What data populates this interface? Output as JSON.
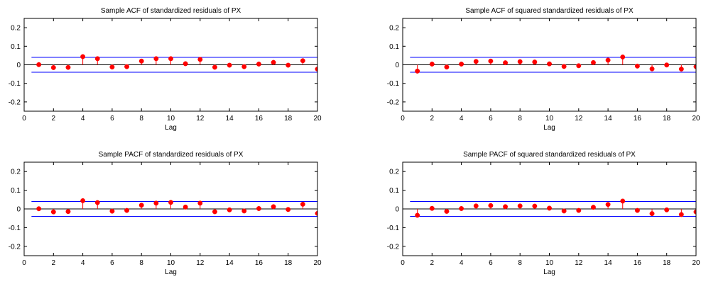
{
  "chart_data": [
    {
      "type": "stem",
      "title": "Sample ACF of standardized residuals of PX",
      "xlabel": "Lag",
      "ylabel": "",
      "xlim": [
        0,
        20
      ],
      "ylim": [
        -0.25,
        0.25
      ],
      "xticks": [
        0,
        2,
        4,
        6,
        8,
        10,
        12,
        14,
        16,
        18,
        20
      ],
      "yticks": [
        -0.2,
        -0.1,
        0,
        0.1,
        0.2
      ],
      "grid": false,
      "bounds": 0.04,
      "lag0_value": 1,
      "lags": [
        1,
        2,
        3,
        4,
        5,
        6,
        7,
        8,
        9,
        10,
        11,
        12,
        13,
        14,
        15,
        16,
        17,
        18,
        19,
        20
      ],
      "values": [
        0.001,
        -0.015,
        -0.014,
        0.044,
        0.033,
        -0.012,
        -0.01,
        0.02,
        0.033,
        0.033,
        0.006,
        0.029,
        -0.013,
        -0.002,
        -0.01,
        0.004,
        0.013,
        -0.002,
        0.022,
        -0.023
      ]
    },
    {
      "type": "stem",
      "title": "Sample ACF of squared standardized residuals of PX",
      "xlabel": "Lag",
      "ylabel": "",
      "xlim": [
        0,
        20
      ],
      "ylim": [
        -0.25,
        0.25
      ],
      "xticks": [
        0,
        2,
        4,
        6,
        8,
        10,
        12,
        14,
        16,
        18,
        20
      ],
      "yticks": [
        -0.2,
        -0.1,
        0,
        0.1,
        0.2
      ],
      "grid": false,
      "bounds": 0.04,
      "lag0_value": 1,
      "lags": [
        1,
        2,
        3,
        4,
        5,
        6,
        7,
        8,
        9,
        10,
        11,
        12,
        13,
        14,
        15,
        16,
        17,
        18,
        19,
        20
      ],
      "values": [
        -0.034,
        0.004,
        -0.012,
        0.004,
        0.018,
        0.02,
        0.011,
        0.017,
        0.015,
        0.005,
        -0.009,
        -0.005,
        0.012,
        0.025,
        0.042,
        -0.007,
        -0.022,
        -0.001,
        -0.023,
        -0.01
      ]
    },
    {
      "type": "stem",
      "title": "Sample PACF of standardized residuals of PX",
      "xlabel": "Lag",
      "ylabel": "",
      "xlim": [
        0,
        20
      ],
      "ylim": [
        -0.25,
        0.25
      ],
      "xticks": [
        0,
        2,
        4,
        6,
        8,
        10,
        12,
        14,
        16,
        18,
        20
      ],
      "yticks": [
        -0.2,
        -0.1,
        0,
        0.1,
        0.2
      ],
      "grid": false,
      "bounds": 0.04,
      "lag0_value": 1,
      "lags": [
        1,
        2,
        3,
        4,
        5,
        6,
        7,
        8,
        9,
        10,
        11,
        12,
        13,
        14,
        15,
        16,
        17,
        18,
        19,
        20
      ],
      "values": [
        0.001,
        -0.016,
        -0.014,
        0.044,
        0.034,
        -0.012,
        -0.008,
        0.02,
        0.031,
        0.035,
        0.01,
        0.031,
        -0.015,
        -0.005,
        -0.011,
        0.002,
        0.012,
        -0.003,
        0.025,
        -0.024
      ]
    },
    {
      "type": "stem",
      "title": "Sample PACF of squared standardized residuals of PX",
      "xlabel": "Lag",
      "ylabel": "",
      "xlim": [
        0,
        20
      ],
      "ylim": [
        -0.25,
        0.25
      ],
      "xticks": [
        0,
        2,
        4,
        6,
        8,
        10,
        12,
        14,
        16,
        18,
        20
      ],
      "yticks": [
        -0.2,
        -0.1,
        0,
        0.1,
        0.2
      ],
      "grid": false,
      "bounds": 0.04,
      "lag0_value": 1,
      "lags": [
        1,
        2,
        3,
        4,
        5,
        6,
        7,
        8,
        9,
        10,
        11,
        12,
        13,
        14,
        15,
        16,
        17,
        18,
        19,
        20
      ],
      "values": [
        -0.034,
        0.003,
        -0.013,
        0.002,
        0.016,
        0.018,
        0.012,
        0.016,
        0.015,
        0.004,
        -0.011,
        -0.008,
        0.009,
        0.024,
        0.042,
        -0.008,
        -0.025,
        -0.005,
        -0.03,
        -0.016
      ]
    }
  ],
  "colors": {
    "stem": "#ff0000",
    "marker": "#ff0000",
    "bounds": "#0000ff",
    "zero_line": "#000000",
    "axes": "#000000",
    "text": "#000000"
  }
}
